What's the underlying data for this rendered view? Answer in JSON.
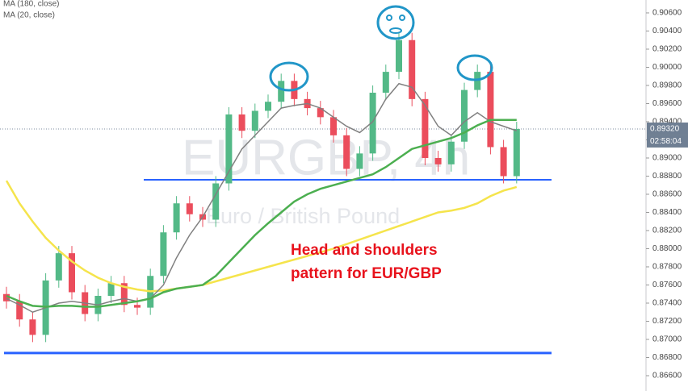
{
  "chart_data": {
    "type": "candlestick",
    "title": "EURGBP, 4h",
    "subtitle": "Euro / British Pound",
    "annotation": [
      "Head and shoulders",
      "pattern for EUR/GBP"
    ],
    "up_color": "#53b987",
    "down_color": "#eb4d5c",
    "open": [
      0.875,
      0.8742,
      0.8722,
      0.8705,
      0.8765,
      0.8795,
      0.8752,
      0.8728,
      0.8748,
      0.8762,
      0.8738,
      0.8735,
      0.877,
      0.8818,
      0.885,
      0.8838,
      0.8832,
      0.8872,
      0.8948,
      0.893,
      0.8952,
      0.8962,
      0.8985,
      0.8965,
      0.8955,
      0.8945,
      0.8925,
      0.8888,
      0.8905,
      0.8972,
      0.8995,
      0.903,
      0.8965,
      0.89,
      0.8893,
      0.8918,
      0.8975,
      0.8995,
      0.8912,
      0.888
    ],
    "high": [
      0.8758,
      0.875,
      0.873,
      0.8773,
      0.8803,
      0.8803,
      0.876,
      0.8756,
      0.877,
      0.877,
      0.8746,
      0.8778,
      0.8826,
      0.8858,
      0.8858,
      0.8846,
      0.888,
      0.8956,
      0.8956,
      0.896,
      0.897,
      0.8993,
      0.8993,
      0.8973,
      0.8963,
      0.8953,
      0.8933,
      0.8913,
      0.898,
      0.9003,
      0.9038,
      0.9038,
      0.8973,
      0.8908,
      0.8926,
      0.8983,
      0.9003,
      0.9003,
      0.892,
      0.894
    ],
    "low": [
      0.8734,
      0.8714,
      0.8697,
      0.8697,
      0.8757,
      0.8744,
      0.872,
      0.872,
      0.874,
      0.873,
      0.8727,
      0.8727,
      0.8762,
      0.881,
      0.883,
      0.8824,
      0.8824,
      0.8864,
      0.8922,
      0.8922,
      0.8944,
      0.8954,
      0.8957,
      0.8947,
      0.8937,
      0.8917,
      0.888,
      0.888,
      0.8897,
      0.8964,
      0.8987,
      0.8957,
      0.8892,
      0.8885,
      0.8885,
      0.891,
      0.8967,
      0.8904,
      0.8872,
      0.8872
    ],
    "close": [
      0.8742,
      0.8722,
      0.8705,
      0.8765,
      0.8795,
      0.8752,
      0.8728,
      0.8748,
      0.8762,
      0.8738,
      0.8735,
      0.877,
      0.8818,
      0.885,
      0.8838,
      0.8832,
      0.8872,
      0.8948,
      0.893,
      0.8952,
      0.8962,
      0.8985,
      0.8965,
      0.8955,
      0.8945,
      0.8925,
      0.8888,
      0.8905,
      0.8972,
      0.8995,
      0.903,
      0.8965,
      0.89,
      0.8893,
      0.8918,
      0.8975,
      0.8995,
      0.8912,
      0.888,
      0.8932
    ],
    "series": [
      {
        "name": "MA (180, close)",
        "color": "#f5e44c",
        "values": [
          0.8875,
          0.885,
          0.883,
          0.8812,
          0.8798,
          0.8786,
          0.8776,
          0.8768,
          0.8762,
          0.8758,
          0.8755,
          0.8753,
          0.8754,
          0.8756,
          0.8758,
          0.876,
          0.8764,
          0.8768,
          0.8772,
          0.8776,
          0.878,
          0.8784,
          0.8788,
          0.8792,
          0.8796,
          0.88,
          0.8805,
          0.881,
          0.8815,
          0.882,
          0.8825,
          0.883,
          0.8835,
          0.884,
          0.8842,
          0.8845,
          0.885,
          0.8858,
          0.8864,
          0.8868
        ]
      },
      {
        "name": "MA (20, close)",
        "color": "#808080",
        "values": [
          0.8745,
          0.8738,
          0.873,
          0.8735,
          0.874,
          0.8742,
          0.874,
          0.8738,
          0.8742,
          0.8745,
          0.8742,
          0.8745,
          0.876,
          0.879,
          0.8815,
          0.8835,
          0.886,
          0.8885,
          0.891,
          0.8925,
          0.894,
          0.8955,
          0.8958,
          0.896,
          0.8955,
          0.8945,
          0.8935,
          0.8928,
          0.894,
          0.8965,
          0.8982,
          0.8978,
          0.8958,
          0.8935,
          0.8925,
          0.894,
          0.895,
          0.894,
          0.8935,
          0.893
        ]
      },
      {
        "color": "#4caf50",
        "values": [
          0.8748,
          0.8742,
          0.8737,
          0.8736,
          0.8737,
          0.8737,
          0.8736,
          0.8736,
          0.8738,
          0.874,
          0.8742,
          0.8745,
          0.8752,
          0.8756,
          0.8758,
          0.876,
          0.877,
          0.8785,
          0.88,
          0.8815,
          0.8828,
          0.884,
          0.8852,
          0.886,
          0.8866,
          0.887,
          0.8874,
          0.8878,
          0.8882,
          0.889,
          0.89,
          0.891,
          0.8914,
          0.8918,
          0.8922,
          0.8928,
          0.8936,
          0.8942,
          0.8942,
          0.8942
        ]
      }
    ],
    "levels": [
      0.8876,
      0.8685
    ],
    "level_color": "#2962ff",
    "current_price": {
      "value": 0.8932,
      "label": "0.89320"
    },
    "countdown": "02:58:04",
    "ylim": [
      0.86431,
      0.90742
    ],
    "yticks": [
      {
        "value": 0.866,
        "label": "0.86600"
      },
      {
        "value": 0.868,
        "label": "0.86800"
      },
      {
        "value": 0.87,
        "label": "0.87000"
      },
      {
        "value": 0.872,
        "label": "0.87200"
      },
      {
        "value": 0.874,
        "label": "0.87400"
      },
      {
        "value": 0.876,
        "label": "0.87600"
      },
      {
        "value": 0.878,
        "label": "0.87800"
      },
      {
        "value": 0.88,
        "label": "0.88000"
      },
      {
        "value": 0.882,
        "label": "0.88200"
      },
      {
        "value": 0.884,
        "label": "0.88400"
      },
      {
        "value": 0.886,
        "label": "0.88600"
      },
      {
        "value": 0.888,
        "label": "0.88800"
      },
      {
        "value": 0.89,
        "label": "0.89000"
      },
      {
        "value": 0.892,
        "label": "0.89200"
      },
      {
        "value": 0.894,
        "label": "0.89400"
      },
      {
        "value": 0.896,
        "label": "0.89600"
      },
      {
        "value": 0.898,
        "label": "0.89800"
      },
      {
        "value": 0.9,
        "label": "0.90000"
      },
      {
        "value": 0.902,
        "label": "0.90200"
      },
      {
        "value": 0.904,
        "label": "0.90400"
      },
      {
        "value": 0.906,
        "label": "0.90600"
      }
    ]
  }
}
